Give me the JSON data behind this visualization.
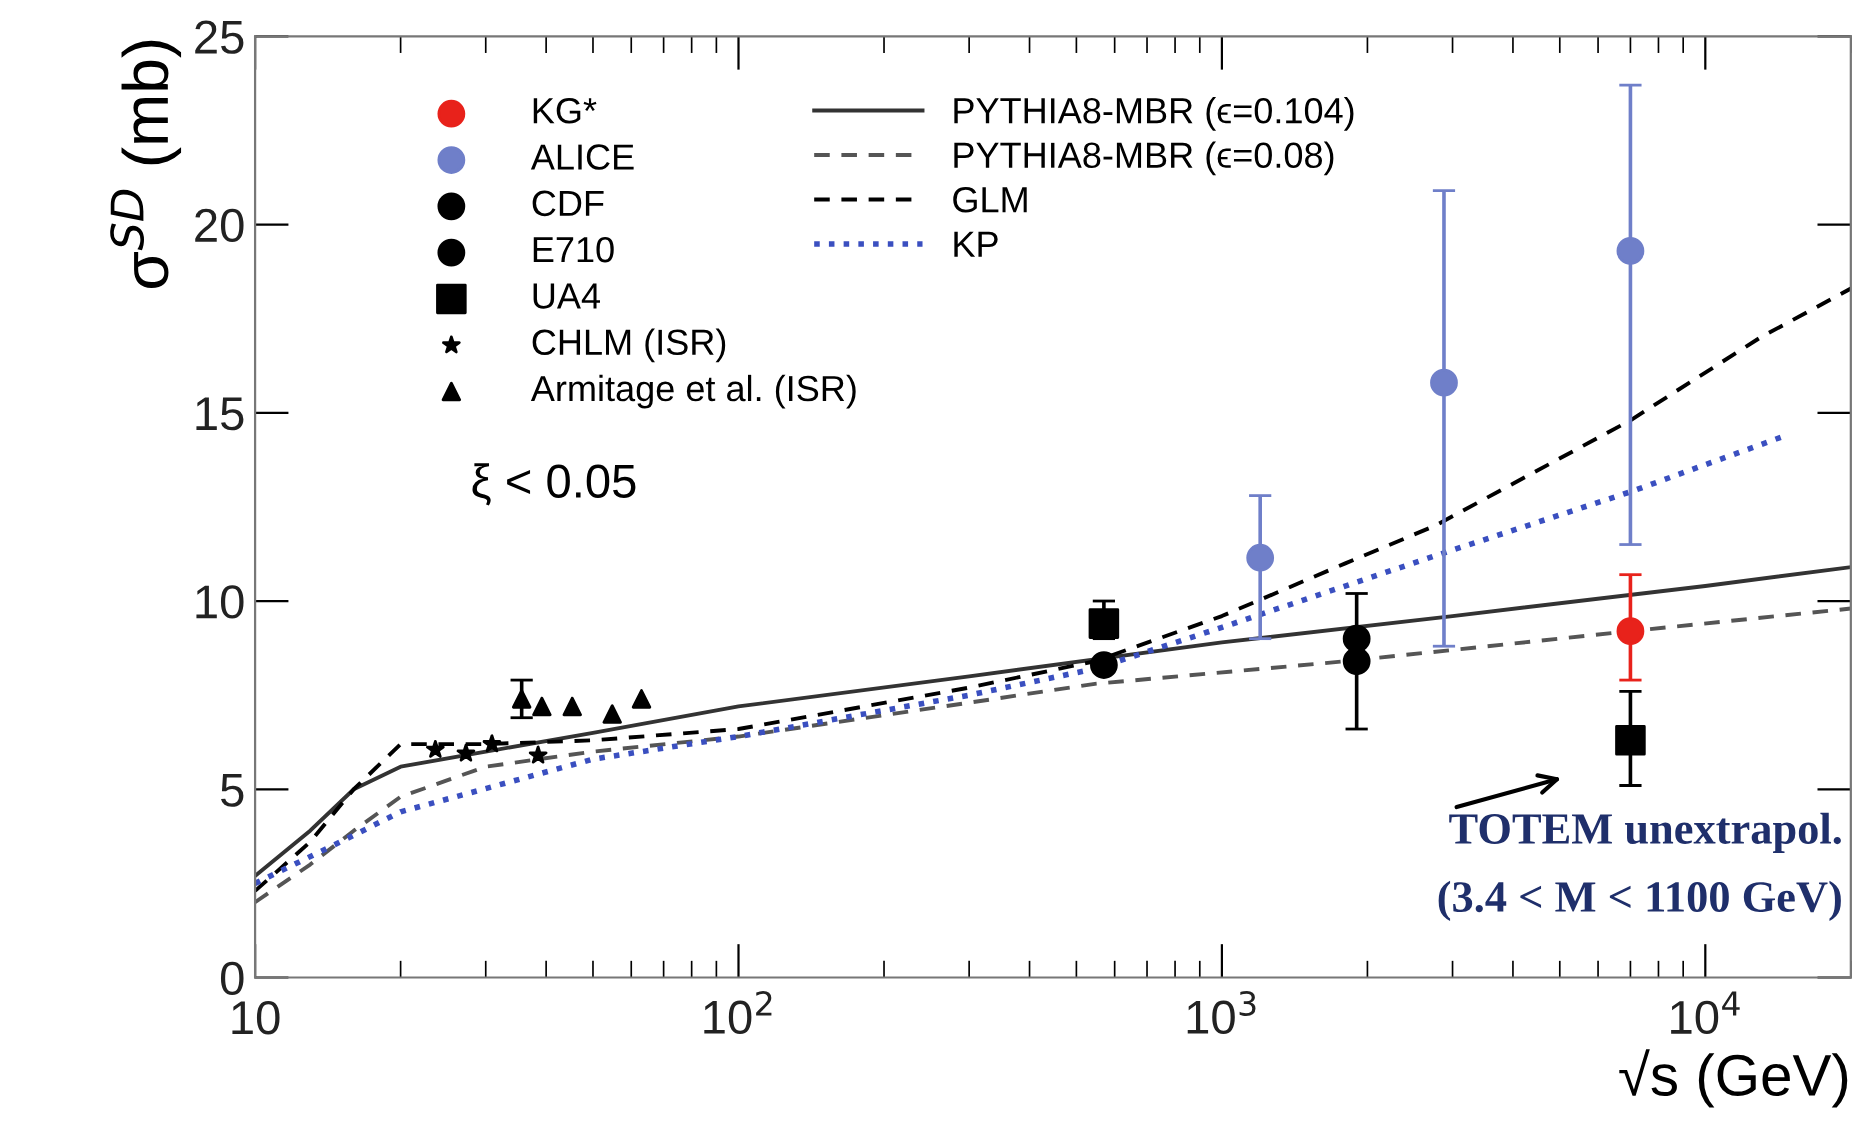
{
  "chart_data": {
    "type": "scatter",
    "xlabel": "√s (GeV)",
    "ylabel": "σ$^{SD}$ (mb)",
    "log": "x",
    "xlim": [
      10,
      20000
    ],
    "ylim": [
      0,
      25
    ],
    "xticks": [
      10,
      {
        "value": 100,
        "label": "10$^{2}$"
      },
      {
        "value": 1000,
        "label": "10$^{3}$"
      },
      {
        "value": 10000,
        "label": "10$^{4}$"
      }
    ],
    "yticks": [
      0,
      5,
      10,
      15,
      20,
      25
    ],
    "grid": false,
    "legend": "top left",
    "series": [
      {
        "name": "KG*",
        "marker": "circle",
        "color": "#e8221b",
        "x": [
          7000
        ],
        "values": [
          9.2
        ],
        "errors": [
          [
            7.9,
            10.7
          ]
        ]
      },
      {
        "name": "ALICE",
        "marker": "circle",
        "color": "#6f7fc9",
        "x": [
          1200,
          2880,
          7000
        ],
        "values": [
          11.15,
          15.8,
          19.3
        ],
        "errors": [
          [
            9.0,
            12.8
          ],
          [
            8.8,
            20.9
          ],
          [
            11.5,
            23.7
          ]
        ]
      },
      {
        "name": "CDF",
        "marker": "circle",
        "color": "#000000",
        "x": [
          570,
          1900
        ],
        "values": [
          8.3,
          9.0
        ]
      },
      {
        "name": "E710",
        "marker": "circle",
        "color": "#000000",
        "x": [
          1900
        ],
        "values": [
          8.4
        ],
        "errors": [
          [
            6.6,
            10.2
          ]
        ]
      },
      {
        "name": "UA4",
        "marker": "square",
        "color": "#000000",
        "x": [
          570
        ],
        "values": [
          9.4
        ],
        "errors": [
          [
            9.0,
            10.0
          ]
        ]
      },
      {
        "name": "CHLM (ISR)",
        "marker": "star",
        "color": "#000000",
        "x": [
          23.6,
          27.3,
          30.9,
          38.5
        ],
        "values": [
          6.05,
          5.95,
          6.2,
          5.9
        ]
      },
      {
        "name": "Armitage et al. (ISR)",
        "marker": "triangle",
        "color": "#000000",
        "x": [
          35.6,
          39.2,
          45.3,
          54.8,
          63
        ],
        "values": [
          7.4,
          7.2,
          7.2,
          7.0,
          7.4
        ],
        "errors": [
          [
            6.9,
            7.9
          ],
          null,
          null,
          null,
          null
        ]
      },
      {
        "name": "PYTHIA8-MBR (ϵ=0.104)",
        "type": "line",
        "line_style": "solid",
        "color": "#333333",
        "x": [
          10,
          13,
          16,
          20,
          30,
          50,
          100,
          300,
          1000,
          3000,
          10000,
          20000
        ],
        "values": [
          2.7,
          3.9,
          5.0,
          5.6,
          6.0,
          6.5,
          7.2,
          8.0,
          8.9,
          9.6,
          10.4,
          10.9
        ]
      },
      {
        "name": "PYTHIA8-MBR (ϵ=0.08)",
        "type": "line",
        "line_style": "dashed",
        "color": "#555555",
        "x": [
          10,
          13,
          16,
          20,
          30,
          50,
          100,
          300,
          546,
          1800,
          7000,
          20000
        ],
        "values": [
          2.0,
          3.0,
          3.9,
          4.8,
          5.6,
          6.0,
          6.4,
          7.3,
          7.8,
          8.4,
          9.2,
          9.8
        ]
      },
      {
        "name": "GLM",
        "type": "line",
        "line_style": "dashed",
        "color": "#000000",
        "x": [
          10,
          13,
          16,
          20,
          30,
          50,
          100,
          300,
          546,
          1000,
          1800,
          2760,
          7000,
          13000,
          20000
        ],
        "values": [
          2.3,
          3.6,
          5.0,
          6.2,
          6.2,
          6.3,
          6.6,
          7.7,
          8.4,
          9.6,
          11.0,
          12.0,
          14.8,
          17.0,
          18.3
        ]
      },
      {
        "name": "KP",
        "type": "line",
        "line_style": "dotted",
        "color": "#3a4fc0",
        "x": [
          10,
          15,
          20,
          50,
          100,
          300,
          546,
          1000,
          2760,
          7000,
          14700
        ],
        "values": [
          2.5,
          3.6,
          4.4,
          5.8,
          6.4,
          7.5,
          8.2,
          9.3,
          11.2,
          12.9,
          14.4
        ]
      },
      {
        "marker": "square",
        "color": "#000000",
        "x": [
          7000
        ],
        "values": [
          6.3
        ],
        "errors": [
          [
            5.1,
            7.6
          ]
        ]
      }
    ],
    "annotations": [
      "ξ < 0.05",
      {
        "text": "TOTEM unextrapol.\n(3.4 < M < 1100 GeV)",
        "x": 7000,
        "y": 6.3
      }
    ]
  }
}
